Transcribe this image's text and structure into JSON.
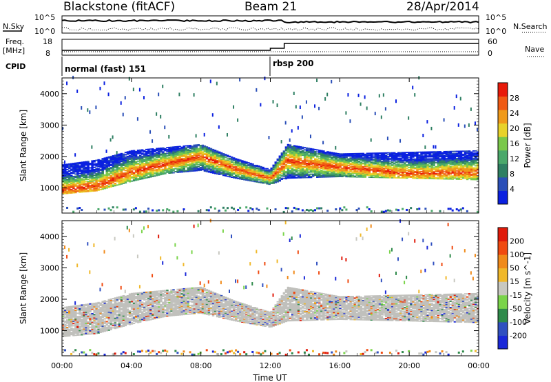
{
  "header": {
    "station": "Blackstone (fitACF)",
    "beam": "Beam 21",
    "date": "28/Apr/2014"
  },
  "summary": {
    "nsky_label": "N.Sky",
    "nsearch_label": "N.Search",
    "freq_label_line1": "Freq.",
    "freq_label_line2": "[MHz]",
    "nave_label": "Nave",
    "cpid_label": "CPID",
    "nsky_ticks": [
      "10^5",
      "10^0"
    ],
    "nsearch_ticks": [
      "10^5",
      "10^0"
    ],
    "freq_ticks": [
      "18",
      "8"
    ],
    "nave_ticks": [
      "60",
      "0"
    ],
    "cpid_segments": [
      {
        "start_hour": 0,
        "label": "normal (fast) 151"
      },
      {
        "start_hour": 12,
        "label": "rbsp 200"
      }
    ]
  },
  "chart_data": [
    {
      "type": "heatmap",
      "name": "power",
      "ylabel": "Slant Range [km]",
      "ylim": [
        200,
        4500
      ],
      "y_ticks": [
        "1000",
        "2000",
        "3000",
        "4000"
      ],
      "colorbar_label": "Power [dB]",
      "colorbar_ticks": [
        "4",
        "8",
        "12",
        "16",
        "20",
        "24",
        "28"
      ],
      "colormap": [
        "#0a20e0",
        "#2a4fb8",
        "#2e7f62",
        "#4aa86a",
        "#7ac84a",
        "#e8d22a",
        "#f09a1a",
        "#f05a14",
        "#e81a0a"
      ],
      "echo_band": [
        {
          "hour": 0.0,
          "lower_km": 800,
          "peak_km": 920,
          "upper_km": 1750
        },
        {
          "hour": 2.0,
          "lower_km": 900,
          "peak_km": 1050,
          "upper_km": 1900
        },
        {
          "hour": 4.0,
          "lower_km": 1200,
          "peak_km": 1500,
          "upper_km": 2200
        },
        {
          "hour": 6.0,
          "lower_km": 1450,
          "peak_km": 1750,
          "upper_km": 2300
        },
        {
          "hour": 8.0,
          "lower_km": 1550,
          "peak_km": 2000,
          "upper_km": 2400
        },
        {
          "hour": 10.0,
          "lower_km": 1300,
          "peak_km": 1600,
          "upper_km": 1950
        },
        {
          "hour": 12.0,
          "lower_km": 1100,
          "peak_km": 1300,
          "upper_km": 1600
        },
        {
          "hour": 13.0,
          "lower_km": 1300,
          "peak_km": 1850,
          "upper_km": 2400
        },
        {
          "hour": 16.0,
          "lower_km": 1350,
          "peak_km": 1650,
          "upper_km": 2100
        },
        {
          "hour": 20.0,
          "lower_km": 1300,
          "peak_km": 1450,
          "upper_km": 2150
        },
        {
          "hour": 24.0,
          "lower_km": 1250,
          "peak_km": 1500,
          "upper_km": 2200
        }
      ]
    },
    {
      "type": "heatmap",
      "name": "velocity",
      "xlabel": "Time UT",
      "ylabel": "Slant Range [km]",
      "ylim": [
        200,
        4500
      ],
      "y_ticks": [
        "1000",
        "2000",
        "3000",
        "4000"
      ],
      "x_ticks": [
        "00:00",
        "04:00",
        "08:00",
        "12:00",
        "16:00",
        "20:00",
        "00:00"
      ],
      "colorbar_label": "Velocity [m s^-1]",
      "colorbar_ticks": [
        "200",
        "100",
        "50",
        "15",
        "-15",
        "-50",
        "-100",
        "-200"
      ],
      "colormap": [
        "#1a28d8",
        "#3050c0",
        "#2e8a4a",
        "#7ad44a",
        "#c8c8c0",
        "#f0b82a",
        "#f08a1a",
        "#f04a10",
        "#e01a0a"
      ],
      "ground_scatter_color": "#c0c0bc"
    }
  ]
}
